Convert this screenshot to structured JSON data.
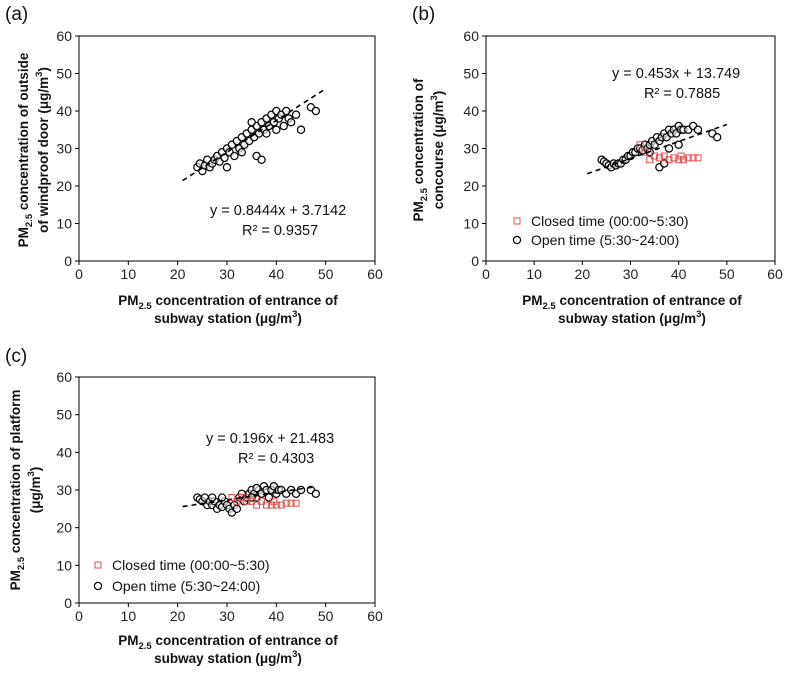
{
  "chart_data": [
    {
      "panel": "(a)",
      "type": "scatter",
      "xlabel": "PM2.5 concentration of entrance of subway station (μg/m3)",
      "xlabel_lines": [
        [
          "PM",
          "2.5",
          " concentration of entrance of"
        ],
        [
          "subway station (μg/m",
          "3",
          ")"
        ]
      ],
      "ylabel": "PM2.5 concentration of outside of windproof door (μg/m3)",
      "ylabel_lines": [
        [
          "PM",
          "2.5",
          " concentration of outside"
        ],
        [
          "of windproof door (μg/m",
          "3",
          ")"
        ]
      ],
      "xlim": [
        0,
        60
      ],
      "ylim": [
        0,
        60
      ],
      "xticks": [
        0,
        10,
        20,
        30,
        40,
        50,
        60
      ],
      "yticks": [
        0,
        10,
        20,
        30,
        40,
        50,
        60
      ],
      "grid": false,
      "equation": "y = 0.8444x + 3.7142",
      "r2": "R² = 0.9357",
      "trendline": {
        "slope": 0.8444,
        "intercept": 3.7142,
        "x_range": [
          21,
          50
        ]
      },
      "series": [
        {
          "marker": "open-circle",
          "color": "#000000",
          "points": [
            [
              24,
              25
            ],
            [
              24.5,
              26
            ],
            [
              25,
              24
            ],
            [
              25.5,
              25.5
            ],
            [
              26,
              27
            ],
            [
              26.5,
              25
            ],
            [
              27,
              26
            ],
            [
              27.5,
              27
            ],
            [
              28,
              28
            ],
            [
              28.5,
              26.5
            ],
            [
              29,
              29
            ],
            [
              29.5,
              27.5
            ],
            [
              30,
              30
            ],
            [
              30.5,
              29
            ],
            [
              31,
              31
            ],
            [
              31.5,
              28
            ],
            [
              32,
              32
            ],
            [
              32.5,
              30
            ],
            [
              33,
              33
            ],
            [
              33.5,
              31
            ],
            [
              34,
              34
            ],
            [
              34.5,
              32
            ],
            [
              35,
              35
            ],
            [
              35.5,
              33
            ],
            [
              36,
              36
            ],
            [
              36.5,
              34
            ],
            [
              37,
              37
            ],
            [
              37.5,
              35
            ],
            [
              38,
              38
            ],
            [
              38.5,
              36
            ],
            [
              39,
              39
            ],
            [
              39.5,
              37
            ],
            [
              40,
              40
            ],
            [
              40.5,
              38
            ],
            [
              41,
              39
            ],
            [
              41.5,
              36
            ],
            [
              42,
              40
            ],
            [
              42.5,
              38
            ],
            [
              43,
              37
            ],
            [
              44,
              39
            ],
            [
              45,
              35
            ],
            [
              47,
              41
            ],
            [
              48,
              40
            ],
            [
              36,
              28
            ],
            [
              37,
              27
            ],
            [
              30,
              25
            ],
            [
              33,
              29
            ],
            [
              35,
              37
            ],
            [
              38,
              34
            ],
            [
              40,
              35
            ]
          ]
        }
      ]
    },
    {
      "panel": "(b)",
      "type": "scatter",
      "xlabel": "PM2.5 concentration of entrance of subway station (μg/m3)",
      "xlabel_lines": [
        [
          "PM",
          "2.5",
          " concentration of entrance of"
        ],
        [
          "subway station (μg/m",
          "3",
          ")"
        ]
      ],
      "ylabel": "PM2.5 concentration of concourse (μg/m3)",
      "ylabel_lines": [
        [
          "PM",
          "2.5",
          " concentration of"
        ],
        [
          "concourse (μg/m",
          "3",
          ")"
        ]
      ],
      "xlim": [
        0,
        60
      ],
      "ylim": [
        0,
        60
      ],
      "xticks": [
        0,
        10,
        20,
        30,
        40,
        50,
        60
      ],
      "yticks": [
        0,
        10,
        20,
        30,
        40,
        50,
        60
      ],
      "grid": false,
      "equation": "y = 0.453x + 13.749",
      "r2": "R² = 0.7885",
      "trendline": {
        "slope": 0.453,
        "intercept": 13.749,
        "x_range": [
          21,
          50
        ]
      },
      "legend": [
        "Closed time (00:00~5:30)",
        "Open time (5:30~24:00)"
      ],
      "series": [
        {
          "name": "Closed time (00:00~5:30)",
          "marker": "open-square",
          "color": "#e05050",
          "points": [
            [
              32,
              31
            ],
            [
              33,
              29
            ],
            [
              34,
              27
            ],
            [
              35,
              28
            ],
            [
              36,
              27.5
            ],
            [
              37,
              28
            ],
            [
              38,
              27
            ],
            [
              39,
              27.5
            ],
            [
              40,
              27
            ],
            [
              40.5,
              28
            ],
            [
              41,
              27
            ],
            [
              42,
              27.5
            ],
            [
              43,
              27.5
            ],
            [
              44,
              27.5
            ]
          ]
        },
        {
          "name": "Open time (5:30~24:00)",
          "marker": "open-circle",
          "color": "#000000",
          "points": [
            [
              24,
              27
            ],
            [
              24.5,
              26.5
            ],
            [
              25,
              26
            ],
            [
              25.5,
              25.5
            ],
            [
              26,
              25
            ],
            [
              26.5,
              26
            ],
            [
              27,
              25.5
            ],
            [
              27.5,
              26
            ],
            [
              28,
              26
            ],
            [
              28.5,
              27
            ],
            [
              29,
              27
            ],
            [
              29.5,
              28
            ],
            [
              30,
              28
            ],
            [
              30.5,
              29
            ],
            [
              31,
              29
            ],
            [
              31.5,
              30
            ],
            [
              32,
              30
            ],
            [
              32.5,
              29.5
            ],
            [
              33,
              31
            ],
            [
              33.5,
              30
            ],
            [
              34,
              31
            ],
            [
              34.5,
              32
            ],
            [
              35,
              31
            ],
            [
              35.5,
              33
            ],
            [
              36,
              32
            ],
            [
              36.5,
              33
            ],
            [
              37,
              34
            ],
            [
              37.5,
              33
            ],
            [
              38,
              35
            ],
            [
              38.5,
              34
            ],
            [
              39,
              35
            ],
            [
              39.5,
              34
            ],
            [
              40,
              36
            ],
            [
              40.5,
              35
            ],
            [
              41,
              35
            ],
            [
              42,
              35
            ],
            [
              43,
              36
            ],
            [
              44,
              35
            ],
            [
              47,
              34
            ],
            [
              48,
              33
            ],
            [
              36,
              25
            ],
            [
              37,
              26
            ],
            [
              34,
              29
            ],
            [
              38,
              30
            ],
            [
              40,
              31
            ]
          ]
        }
      ]
    },
    {
      "panel": "(c)",
      "type": "scatter",
      "xlabel": "PM2.5 concentration of entrance of subway station (μg/m3)",
      "xlabel_lines": [
        [
          "PM",
          "2.5",
          " concentration of entrance of"
        ],
        [
          "subway station (μg/m",
          "3",
          ")"
        ]
      ],
      "ylabel": "PM2.5 concentration of platform (μg/m3)",
      "ylabel_lines": [
        [
          "PM",
          "2.5",
          " concentration of platform"
        ],
        [
          "(μg/m",
          "3",
          ")"
        ]
      ],
      "xlim": [
        0,
        60
      ],
      "ylim": [
        0,
        60
      ],
      "xticks": [
        0,
        10,
        20,
        30,
        40,
        50,
        60
      ],
      "yticks": [
        0,
        10,
        20,
        30,
        40,
        50,
        60
      ],
      "grid": false,
      "equation": "y = 0.196x + 21.483",
      "r2": "R² = 0.4303",
      "trendline": {
        "slope": 0.196,
        "intercept": 21.483,
        "x_range": [
          21,
          48
        ]
      },
      "legend": [
        "Closed time (00:00~5:30)",
        "Open time (5:30~24:00)"
      ],
      "series": [
        {
          "name": "Closed time (00:00~5:30)",
          "marker": "open-square",
          "color": "#e05050",
          "points": [
            [
              31,
              28
            ],
            [
              32,
              27
            ],
            [
              33,
              28
            ],
            [
              34,
              27
            ],
            [
              35,
              27
            ],
            [
              36,
              26
            ],
            [
              37,
              27
            ],
            [
              38,
              26
            ],
            [
              39,
              26
            ],
            [
              39.5,
              27
            ],
            [
              40,
              26
            ],
            [
              41,
              26
            ],
            [
              42,
              26.5
            ],
            [
              43,
              26.5
            ],
            [
              44,
              26.5
            ]
          ]
        },
        {
          "name": "Open time (5:30~24:00)",
          "marker": "open-circle",
          "color": "#000000",
          "points": [
            [
              24,
              28
            ],
            [
              24.5,
              27.5
            ],
            [
              25,
              27
            ],
            [
              25.5,
              28
            ],
            [
              26,
              26
            ],
            [
              26.5,
              27
            ],
            [
              27,
              26
            ],
            [
              27.5,
              27
            ],
            [
              28,
              25
            ],
            [
              28.5,
              26
            ],
            [
              29,
              25.5
            ],
            [
              29.5,
              27
            ],
            [
              30,
              26
            ],
            [
              30.5,
              25
            ],
            [
              31,
              24
            ],
            [
              31.5,
              26
            ],
            [
              32,
              25
            ],
            [
              32.5,
              28
            ],
            [
              33,
              29
            ],
            [
              33.5,
              27
            ],
            [
              34,
              28
            ],
            [
              34.5,
              29
            ],
            [
              35,
              30
            ],
            [
              35.5,
              29
            ],
            [
              36,
              28
            ],
            [
              36.5,
              30
            ],
            [
              37,
              29
            ],
            [
              37.5,
              31
            ],
            [
              38,
              30
            ],
            [
              38.5,
              28
            ],
            [
              39,
              30
            ],
            [
              39.5,
              31
            ],
            [
              40,
              29
            ],
            [
              40.5,
              30
            ],
            [
              41,
              30
            ],
            [
              42,
              29
            ],
            [
              43,
              30
            ],
            [
              44,
              29
            ],
            [
              45,
              30
            ],
            [
              47,
              30
            ],
            [
              48,
              29
            ],
            [
              36,
              30.5
            ],
            [
              35,
              28
            ],
            [
              29,
              28
            ],
            [
              27,
              28
            ]
          ]
        }
      ]
    }
  ]
}
